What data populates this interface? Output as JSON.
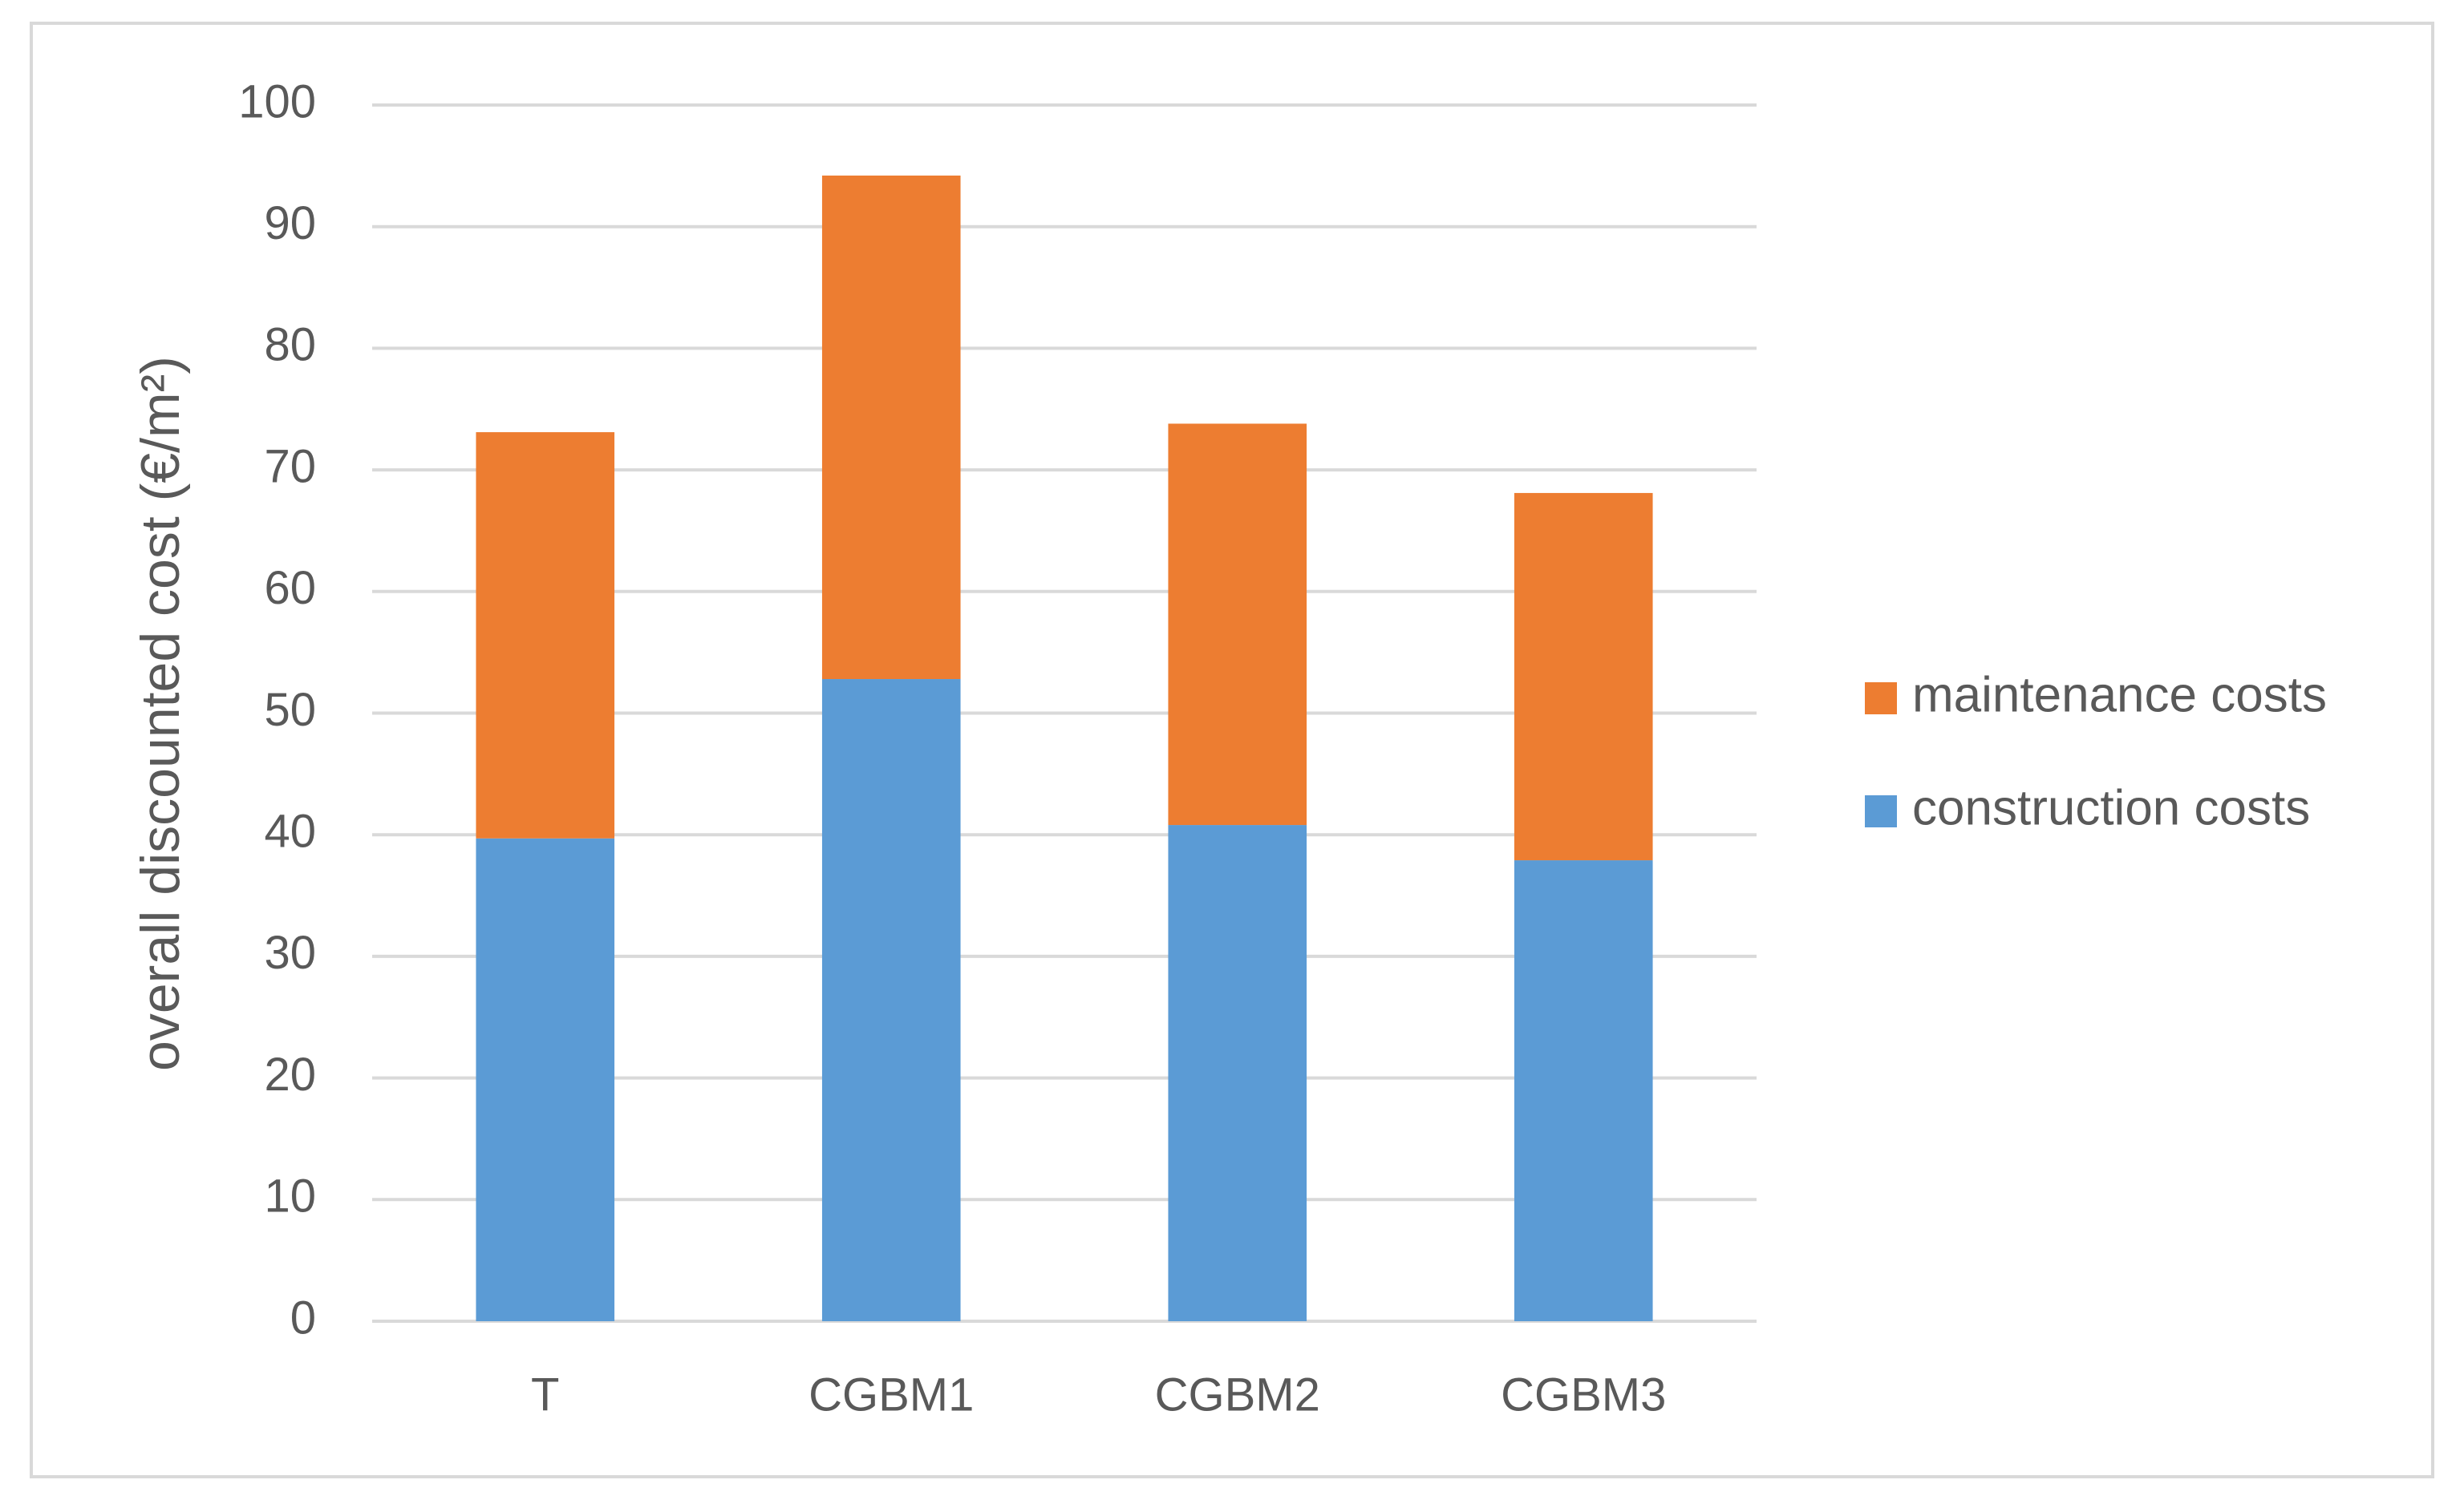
{
  "chart_data": {
    "type": "stacked_bar",
    "y_label": "overall discounted cost (€/m²)",
    "categories": [
      "T",
      "CGBM1",
      "CGBM2",
      "CGBM3"
    ],
    "series": [
      {
        "name": "construction costs",
        "color": "#5b9bd5",
        "values": [
          39.7,
          52.8,
          40.8,
          37.9
        ]
      },
      {
        "name": "maintenance costs",
        "color": "#ed7d31",
        "values": [
          33.4,
          41.4,
          33.0,
          30.2
        ]
      }
    ],
    "ylim": [
      0,
      100
    ],
    "yticks": [
      0,
      10,
      20,
      30,
      40,
      50,
      60,
      70,
      80,
      90,
      100
    ],
    "grid": true,
    "legend": "right"
  }
}
